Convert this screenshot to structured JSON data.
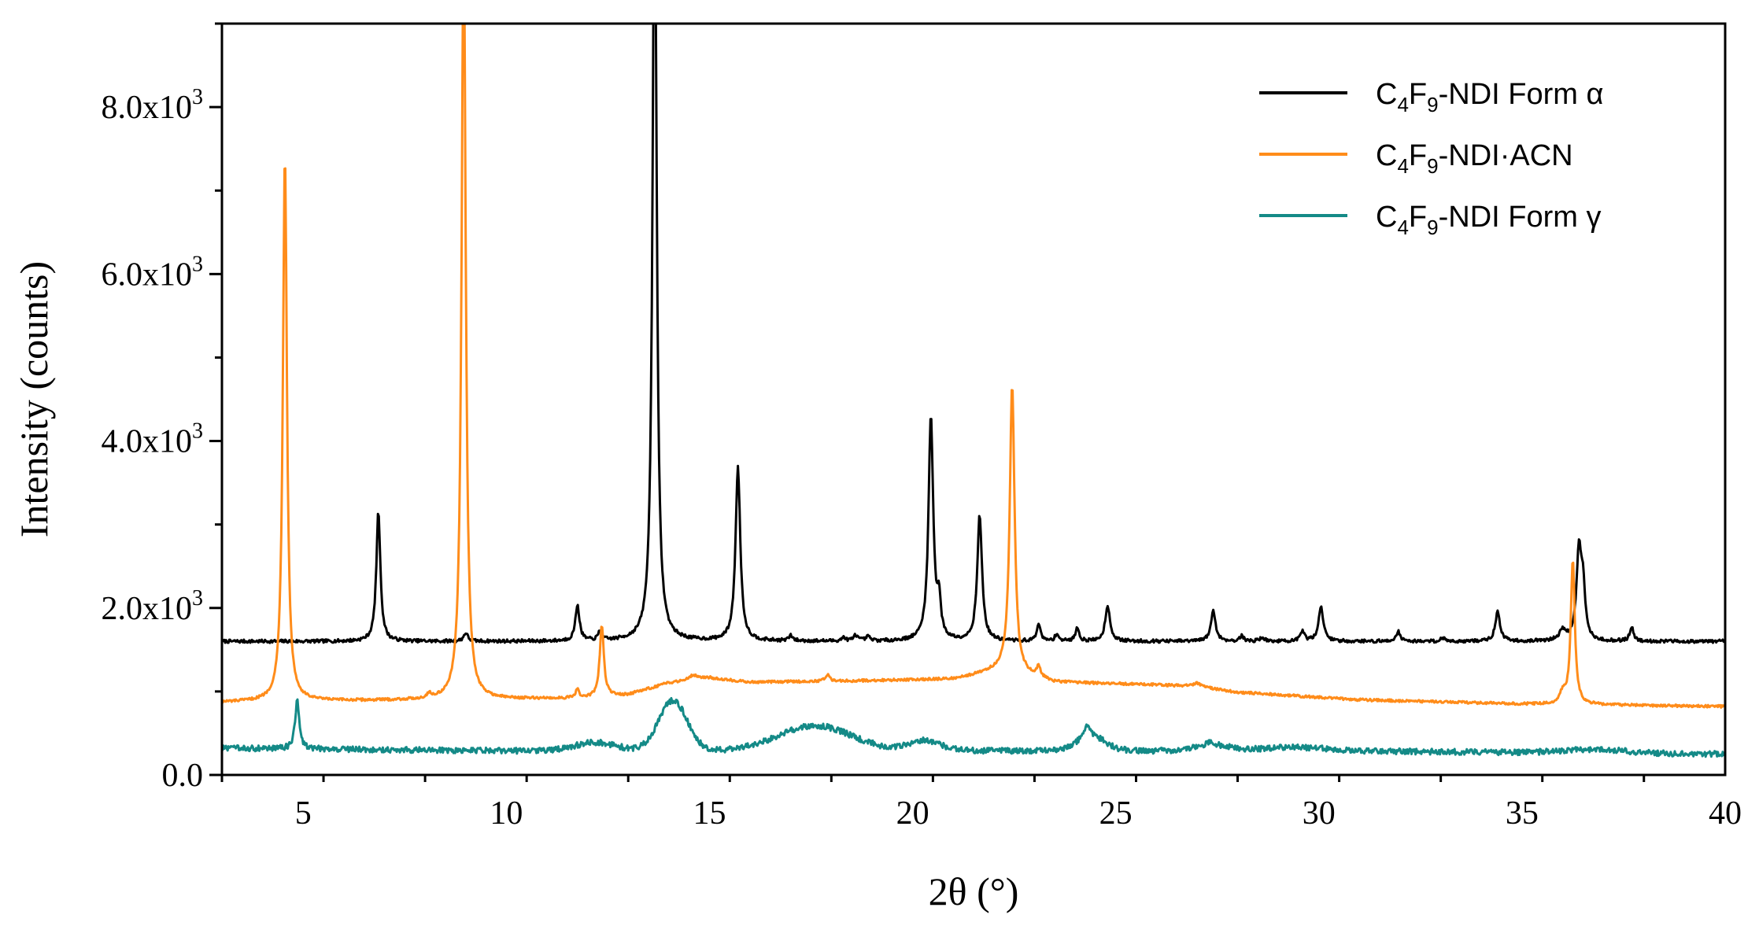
{
  "chart_data": {
    "type": "line",
    "xlabel": "2θ (°)",
    "ylabel": "Intensity (counts)",
    "xlim": [
      3,
      40
    ],
    "ylim": [
      0,
      9000
    ],
    "x_ticks": [
      5,
      10,
      15,
      20,
      25,
      30,
      35,
      40
    ],
    "x_tick_labels": [
      "5",
      "10",
      "15",
      "20",
      "25",
      "30",
      "35",
      "40"
    ],
    "y_ticks": [
      0,
      2000,
      4000,
      6000,
      8000
    ],
    "y_tick_labels": [
      {
        "base": "0.0",
        "exp": ""
      },
      {
        "base": "2.0x10",
        "exp": "3"
      },
      {
        "base": "4.0x10",
        "exp": "3"
      },
      {
        "base": "6.0x10",
        "exp": "3"
      },
      {
        "base": "8.0x10",
        "exp": "3"
      }
    ],
    "grid": false,
    "legend_position": "top-right",
    "series": [
      {
        "name_parts": {
          "pre": "C",
          "sub1": "4",
          "mid": "F",
          "sub2": "9",
          "post": "-NDI Form α"
        },
        "color": "#000000",
        "baseline": 1600,
        "noise": 20,
        "peaks": [
          [
            6.85,
            1550,
            0.06
          ],
          [
            9.0,
            100,
            0.06
          ],
          [
            11.75,
            430,
            0.06
          ],
          [
            12.3,
            100,
            0.05
          ],
          [
            13.65,
            9500,
            0.06
          ],
          [
            15.7,
            2080,
            0.07
          ],
          [
            17.0,
            60,
            0.06
          ],
          [
            18.3,
            40,
            0.06
          ],
          [
            18.6,
            70,
            0.06
          ],
          [
            18.9,
            50,
            0.06
          ],
          [
            20.45,
            2680,
            0.07
          ],
          [
            20.65,
            420,
            0.05
          ],
          [
            21.65,
            1500,
            0.07
          ],
          [
            23.1,
            220,
            0.05
          ],
          [
            23.55,
            90,
            0.05
          ],
          [
            24.05,
            170,
            0.05
          ],
          [
            24.8,
            430,
            0.07
          ],
          [
            27.4,
            360,
            0.07
          ],
          [
            28.1,
            60,
            0.06
          ],
          [
            28.6,
            50,
            0.06
          ],
          [
            29.6,
            110,
            0.06
          ],
          [
            30.05,
            420,
            0.07
          ],
          [
            31.95,
            120,
            0.06
          ],
          [
            33.05,
            40,
            0.06
          ],
          [
            34.4,
            350,
            0.07
          ],
          [
            36.0,
            120,
            0.1
          ],
          [
            36.4,
            1050,
            0.07
          ],
          [
            36.5,
            600,
            0.06
          ],
          [
            37.7,
            160,
            0.06
          ]
        ],
        "humps": [],
        "base_points": [
          [
            3,
            1600
          ],
          [
            40,
            1600
          ]
        ]
      },
      {
        "name_parts": {
          "pre": "C",
          "sub1": "4",
          "mid": "F",
          "sub2": "9",
          "post": "-NDI·ACN"
        },
        "color": "#ff8c1a",
        "baseline": 850,
        "noise": 15,
        "peaks": [
          [
            4.55,
            6550,
            0.06
          ],
          [
            8.1,
            60,
            0.05
          ],
          [
            8.95,
            9300,
            0.06
          ],
          [
            11.75,
            100,
            0.05
          ],
          [
            12.35,
            860,
            0.06
          ],
          [
            14.6,
            60,
            0.15
          ],
          [
            17.9,
            80,
            0.06
          ],
          [
            22.45,
            3450,
            0.07
          ],
          [
            23.1,
            120,
            0.06
          ],
          [
            27.0,
            40,
            0.1
          ],
          [
            36.0,
            120,
            0.08
          ],
          [
            36.25,
            1720,
            0.06
          ]
        ],
        "humps": [],
        "base_points": [
          [
            3,
            870
          ],
          [
            4,
            880
          ],
          [
            9,
            900
          ],
          [
            12,
            920
          ],
          [
            13,
            960
          ],
          [
            14,
            1100
          ],
          [
            15,
            1160
          ],
          [
            16,
            1110
          ],
          [
            19,
            1130
          ],
          [
            21,
            1150
          ],
          [
            22.2,
            1260
          ],
          [
            22.8,
            1190
          ],
          [
            23.5,
            1110
          ],
          [
            26,
            1080
          ],
          [
            27,
            1060
          ],
          [
            28,
            990
          ],
          [
            31,
            900
          ],
          [
            35,
            850
          ],
          [
            40,
            820
          ]
        ]
      },
      {
        "name_parts": {
          "pre": "C",
          "sub1": "4",
          "mid": "F",
          "sub2": "9",
          "post": "-NDI Form γ"
        },
        "color": "#148a87",
        "baseline": 290,
        "noise": 35,
        "peaks": [
          [
            4.85,
            580,
            0.06
          ],
          [
            24.3,
            150,
            0.1
          ],
          [
            27.3,
            30,
            0.08
          ]
        ],
        "humps": [
          [
            12.2,
            100,
            0.5
          ],
          [
            14.1,
            600,
            0.35
          ],
          [
            17.6,
            300,
            0.9
          ],
          [
            20.3,
            120,
            0.4
          ],
          [
            24.4,
            160,
            0.35
          ],
          [
            27.4,
            70,
            0.4
          ],
          [
            29.4,
            40,
            0.8
          ],
          [
            36.8,
            40,
            0.8
          ]
        ],
        "base_points": [
          [
            3,
            320
          ],
          [
            10,
            290
          ],
          [
            30,
            290
          ],
          [
            40,
            250
          ]
        ]
      }
    ]
  }
}
